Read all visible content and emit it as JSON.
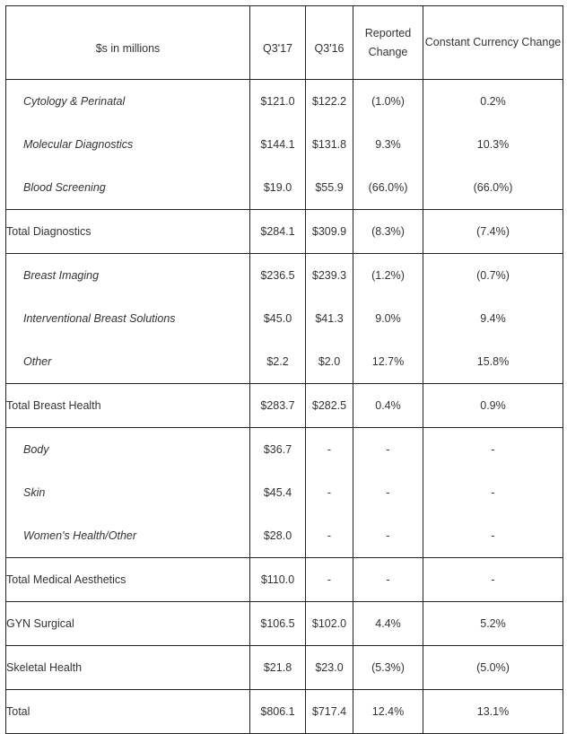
{
  "headers": {
    "label": "$s in millions",
    "q317": "Q3'17",
    "q316": "Q3'16",
    "reported": "Reported Change",
    "constant": "Constant Currency Change"
  },
  "rows": [
    {
      "label": "Cytology & Perinatal",
      "q317": "$121.0",
      "q316": "$122.2",
      "reported": "(1.0%)",
      "constant": "0.2%"
    },
    {
      "label": "Molecular Diagnostics",
      "q317": "$144.1",
      "q316": "$131.8",
      "reported": "9.3%",
      "constant": "10.3%"
    },
    {
      "label": "Blood Screening",
      "q317": "$19.0",
      "q316": "$55.9",
      "reported": "(66.0%)",
      "constant": "(66.0%)"
    },
    {
      "label": "Total Diagnostics",
      "q317": "$284.1",
      "q316": "$309.9",
      "reported": "(8.3%)",
      "constant": "(7.4%)"
    },
    {
      "label": "Breast Imaging",
      "q317": "$236.5",
      "q316": "$239.3",
      "reported": "(1.2%)",
      "constant": "(0.7%)"
    },
    {
      "label": "Interventional Breast Solutions",
      "q317": "$45.0",
      "q316": "$41.3",
      "reported": "9.0%",
      "constant": "9.4%"
    },
    {
      "label": "Other",
      "q317": "$2.2",
      "q316": "$2.0",
      "reported": "12.7%",
      "constant": "15.8%"
    },
    {
      "label": "Total Breast Health",
      "q317": "$283.7",
      "q316": "$282.5",
      "reported": "0.4%",
      "constant": "0.9%"
    },
    {
      "label": "Body",
      "q317": "$36.7",
      "q316": "-",
      "reported": "-",
      "constant": "-"
    },
    {
      "label": "Skin",
      "q317": "$45.4",
      "q316": "-",
      "reported": "-",
      "constant": "-"
    },
    {
      "label": "Women's Health/Other",
      "q317": "$28.0",
      "q316": "-",
      "reported": "-",
      "constant": "-"
    },
    {
      "label": "Total Medical Aesthetics",
      "q317": "$110.0",
      "q316": "-",
      "reported": "-",
      "constant": "-"
    },
    {
      "label": "GYN Surgical",
      "q317": "$106.5",
      "q316": "$102.0",
      "reported": "4.4%",
      "constant": "5.2%"
    },
    {
      "label": "Skeletal Health",
      "q317": "$21.8",
      "q316": "$23.0",
      "reported": "(5.3%)",
      "constant": "(5.0%)"
    },
    {
      "label": "Total",
      "q317": "$806.1",
      "q316": "$717.4",
      "reported": "12.4%",
      "constant": "13.1%"
    }
  ]
}
